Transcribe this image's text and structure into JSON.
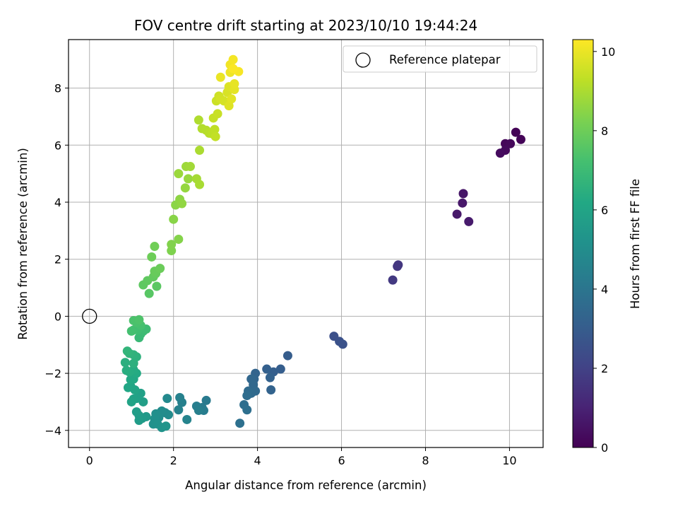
{
  "chart_data": {
    "type": "scatter",
    "title": "FOV centre drift starting at 2023/10/10 19:44:24",
    "xlabel": "Angular distance from reference (arcmin)",
    "ylabel": "Rotation from reference (arcmin)",
    "xlim": [
      -0.5,
      10.8
    ],
    "ylim": [
      -4.6,
      9.7
    ],
    "xticks": [
      0,
      2,
      4,
      6,
      8,
      10
    ],
    "yticks": [
      -4,
      -2,
      0,
      2,
      4,
      6,
      8
    ],
    "grid": true,
    "legend": {
      "placement": "top-right",
      "entries": [
        "Reference platepar"
      ]
    },
    "reference_point": {
      "x": 0,
      "y": 0,
      "label": "Reference platepar"
    },
    "colorbar": {
      "label": "Hours from first FF file",
      "colormap": "viridis",
      "range": [
        0,
        10.3
      ],
      "ticks": [
        0,
        2,
        4,
        6,
        8,
        10
      ]
    },
    "points": [
      {
        "x": 10.15,
        "y": 6.45,
        "c": 0.05
      },
      {
        "x": 10.27,
        "y": 6.2,
        "c": 0.1
      },
      {
        "x": 9.9,
        "y": 6.05,
        "c": 0.15
      },
      {
        "x": 10.02,
        "y": 6.05,
        "c": 0.2
      },
      {
        "x": 9.9,
        "y": 5.82,
        "c": 0.25
      },
      {
        "x": 9.78,
        "y": 5.72,
        "c": 0.3
      },
      {
        "x": 8.9,
        "y": 4.3,
        "c": 0.6
      },
      {
        "x": 8.88,
        "y": 3.97,
        "c": 0.65
      },
      {
        "x": 8.75,
        "y": 3.58,
        "c": 0.7
      },
      {
        "x": 9.03,
        "y": 3.32,
        "c": 0.75
      },
      {
        "x": 7.35,
        "y": 1.8,
        "c": 1.6
      },
      {
        "x": 7.33,
        "y": 1.75,
        "c": 1.65
      },
      {
        "x": 7.22,
        "y": 1.27,
        "c": 1.7
      },
      {
        "x": 5.82,
        "y": -0.7,
        "c": 2.5
      },
      {
        "x": 5.95,
        "y": -0.88,
        "c": 2.55
      },
      {
        "x": 6.03,
        "y": -0.98,
        "c": 2.6
      },
      {
        "x": 4.72,
        "y": -1.38,
        "c": 3.0
      },
      {
        "x": 4.55,
        "y": -1.85,
        "c": 3.05
      },
      {
        "x": 4.38,
        "y": -1.95,
        "c": 3.1
      },
      {
        "x": 4.22,
        "y": -1.85,
        "c": 3.15
      },
      {
        "x": 4.3,
        "y": -2.15,
        "c": 3.2
      },
      {
        "x": 4.32,
        "y": -2.58,
        "c": 3.25
      },
      {
        "x": 3.95,
        "y": -2.0,
        "c": 3.3
      },
      {
        "x": 3.92,
        "y": -2.2,
        "c": 3.35
      },
      {
        "x": 3.85,
        "y": -2.2,
        "c": 3.4
      },
      {
        "x": 3.9,
        "y": -2.4,
        "c": 3.45
      },
      {
        "x": 3.95,
        "y": -2.62,
        "c": 3.5
      },
      {
        "x": 3.85,
        "y": -2.7,
        "c": 3.55
      },
      {
        "x": 3.78,
        "y": -2.62,
        "c": 3.6
      },
      {
        "x": 3.75,
        "y": -2.78,
        "c": 3.65
      },
      {
        "x": 3.68,
        "y": -3.1,
        "c": 3.7
      },
      {
        "x": 3.75,
        "y": -3.28,
        "c": 3.75
      },
      {
        "x": 3.58,
        "y": -3.75,
        "c": 3.8
      },
      {
        "x": 2.78,
        "y": -2.95,
        "c": 4.2
      },
      {
        "x": 2.68,
        "y": -3.2,
        "c": 4.25
      },
      {
        "x": 2.72,
        "y": -3.3,
        "c": 4.3
      },
      {
        "x": 2.55,
        "y": -3.15,
        "c": 4.35
      },
      {
        "x": 2.6,
        "y": -3.3,
        "c": 4.4
      },
      {
        "x": 2.2,
        "y": -3.02,
        "c": 4.45
      },
      {
        "x": 2.15,
        "y": -2.85,
        "c": 4.5
      },
      {
        "x": 2.12,
        "y": -3.28,
        "c": 4.55
      },
      {
        "x": 2.32,
        "y": -3.62,
        "c": 4.6
      },
      {
        "x": 1.85,
        "y": -2.88,
        "c": 4.8
      },
      {
        "x": 1.8,
        "y": -3.38,
        "c": 4.85
      },
      {
        "x": 1.88,
        "y": -3.45,
        "c": 4.9
      },
      {
        "x": 1.72,
        "y": -3.32,
        "c": 4.95
      },
      {
        "x": 1.65,
        "y": -3.55,
        "c": 5.0
      },
      {
        "x": 1.58,
        "y": -3.42,
        "c": 5.05
      },
      {
        "x": 1.55,
        "y": -3.6,
        "c": 5.1
      },
      {
        "x": 1.52,
        "y": -3.78,
        "c": 5.15
      },
      {
        "x": 1.62,
        "y": -3.78,
        "c": 5.2
      },
      {
        "x": 1.72,
        "y": -3.9,
        "c": 5.25
      },
      {
        "x": 1.82,
        "y": -3.85,
        "c": 5.3
      },
      {
        "x": 1.35,
        "y": -3.52,
        "c": 5.5
      },
      {
        "x": 1.25,
        "y": -3.58,
        "c": 5.55
      },
      {
        "x": 1.18,
        "y": -3.48,
        "c": 5.6
      },
      {
        "x": 1.18,
        "y": -3.65,
        "c": 5.65
      },
      {
        "x": 1.12,
        "y": -3.35,
        "c": 5.7
      },
      {
        "x": 1.28,
        "y": -3.0,
        "c": 5.75
      },
      {
        "x": 1.22,
        "y": -2.7,
        "c": 5.8
      },
      {
        "x": 1.12,
        "y": -2.88,
        "c": 5.85
      },
      {
        "x": 1.05,
        "y": -2.9,
        "c": 5.9
      },
      {
        "x": 1.0,
        "y": -3.0,
        "c": 5.95
      },
      {
        "x": 1.08,
        "y": -2.58,
        "c": 6.0
      },
      {
        "x": 0.98,
        "y": -2.45,
        "c": 6.05
      },
      {
        "x": 0.92,
        "y": -2.5,
        "c": 6.1
      },
      {
        "x": 1.05,
        "y": -2.2,
        "c": 6.15
      },
      {
        "x": 0.98,
        "y": -2.22,
        "c": 6.2
      },
      {
        "x": 1.12,
        "y": -2.0,
        "c": 6.25
      },
      {
        "x": 1.05,
        "y": -1.88,
        "c": 6.3
      },
      {
        "x": 0.95,
        "y": -1.95,
        "c": 6.35
      },
      {
        "x": 0.88,
        "y": -1.9,
        "c": 6.4
      },
      {
        "x": 0.85,
        "y": -1.62,
        "c": 6.45
      },
      {
        "x": 1.05,
        "y": -1.65,
        "c": 6.5
      },
      {
        "x": 1.12,
        "y": -1.42,
        "c": 6.55
      },
      {
        "x": 1.05,
        "y": -1.35,
        "c": 6.6
      },
      {
        "x": 0.95,
        "y": -1.3,
        "c": 6.65
      },
      {
        "x": 0.9,
        "y": -1.22,
        "c": 6.7
      },
      {
        "x": 1.18,
        "y": -0.75,
        "c": 6.9
      },
      {
        "x": 1.22,
        "y": -0.62,
        "c": 6.95
      },
      {
        "x": 1.28,
        "y": -0.52,
        "c": 7.0
      },
      {
        "x": 1.35,
        "y": -0.45,
        "c": 7.05
      },
      {
        "x": 1.15,
        "y": -0.48,
        "c": 7.1
      },
      {
        "x": 1.05,
        "y": -0.48,
        "c": 7.15
      },
      {
        "x": 1.0,
        "y": -0.52,
        "c": 7.2
      },
      {
        "x": 1.22,
        "y": -0.32,
        "c": 7.25
      },
      {
        "x": 1.12,
        "y": -0.22,
        "c": 7.3
      },
      {
        "x": 1.05,
        "y": -0.15,
        "c": 7.35
      },
      {
        "x": 1.18,
        "y": -0.12,
        "c": 7.4
      },
      {
        "x": 1.42,
        "y": 0.8,
        "c": 7.6
      },
      {
        "x": 1.6,
        "y": 1.05,
        "c": 7.65
      },
      {
        "x": 1.28,
        "y": 1.1,
        "c": 7.7
      },
      {
        "x": 1.38,
        "y": 1.25,
        "c": 7.75
      },
      {
        "x": 1.52,
        "y": 1.38,
        "c": 7.8
      },
      {
        "x": 1.58,
        "y": 1.5,
        "c": 7.85
      },
      {
        "x": 1.55,
        "y": 1.58,
        "c": 7.9
      },
      {
        "x": 1.68,
        "y": 1.68,
        "c": 7.95
      },
      {
        "x": 1.48,
        "y": 2.08,
        "c": 8.0
      },
      {
        "x": 1.55,
        "y": 2.45,
        "c": 8.05
      },
      {
        "x": 1.95,
        "y": 2.3,
        "c": 8.3
      },
      {
        "x": 1.95,
        "y": 2.52,
        "c": 8.35
      },
      {
        "x": 2.12,
        "y": 2.7,
        "c": 8.4
      },
      {
        "x": 2.0,
        "y": 3.4,
        "c": 8.45
      },
      {
        "x": 2.05,
        "y": 3.9,
        "c": 8.5
      },
      {
        "x": 2.15,
        "y": 4.1,
        "c": 8.55
      },
      {
        "x": 2.2,
        "y": 3.95,
        "c": 8.6
      },
      {
        "x": 2.28,
        "y": 4.5,
        "c": 8.65
      },
      {
        "x": 2.35,
        "y": 4.82,
        "c": 8.7
      },
      {
        "x": 2.12,
        "y": 5.0,
        "c": 8.75
      },
      {
        "x": 2.3,
        "y": 5.25,
        "c": 8.8
      },
      {
        "x": 2.4,
        "y": 5.25,
        "c": 8.85
      },
      {
        "x": 2.55,
        "y": 4.82,
        "c": 8.9
      },
      {
        "x": 2.62,
        "y": 4.62,
        "c": 8.95
      },
      {
        "x": 2.62,
        "y": 5.82,
        "c": 9.0
      },
      {
        "x": 2.6,
        "y": 6.88,
        "c": 9.05
      },
      {
        "x": 2.68,
        "y": 6.58,
        "c": 9.1
      },
      {
        "x": 2.78,
        "y": 6.52,
        "c": 9.15
      },
      {
        "x": 2.85,
        "y": 6.42,
        "c": 9.2
      },
      {
        "x": 2.92,
        "y": 6.4,
        "c": 9.25
      },
      {
        "x": 2.98,
        "y": 6.55,
        "c": 9.3
      },
      {
        "x": 3.0,
        "y": 6.3,
        "c": 9.35
      },
      {
        "x": 2.95,
        "y": 6.95,
        "c": 9.4
      },
      {
        "x": 3.05,
        "y": 7.1,
        "c": 9.45
      },
      {
        "x": 3.02,
        "y": 7.55,
        "c": 9.5
      },
      {
        "x": 3.08,
        "y": 7.72,
        "c": 9.55
      },
      {
        "x": 3.12,
        "y": 7.62,
        "c": 9.6
      },
      {
        "x": 3.2,
        "y": 7.55,
        "c": 9.65
      },
      {
        "x": 3.28,
        "y": 7.85,
        "c": 9.7
      },
      {
        "x": 3.32,
        "y": 8.05,
        "c": 9.75
      },
      {
        "x": 3.32,
        "y": 7.38,
        "c": 9.8
      },
      {
        "x": 3.38,
        "y": 7.62,
        "c": 9.85
      },
      {
        "x": 3.45,
        "y": 7.95,
        "c": 9.9
      },
      {
        "x": 3.45,
        "y": 8.15,
        "c": 9.95
      },
      {
        "x": 3.12,
        "y": 8.38,
        "c": 10.0
      },
      {
        "x": 3.35,
        "y": 8.55,
        "c": 10.05
      },
      {
        "x": 3.35,
        "y": 8.82,
        "c": 10.1
      },
      {
        "x": 3.42,
        "y": 9.0,
        "c": 10.15
      },
      {
        "x": 3.55,
        "y": 8.58,
        "c": 10.2
      },
      {
        "x": 3.42,
        "y": 8.68,
        "c": 10.25
      }
    ]
  }
}
